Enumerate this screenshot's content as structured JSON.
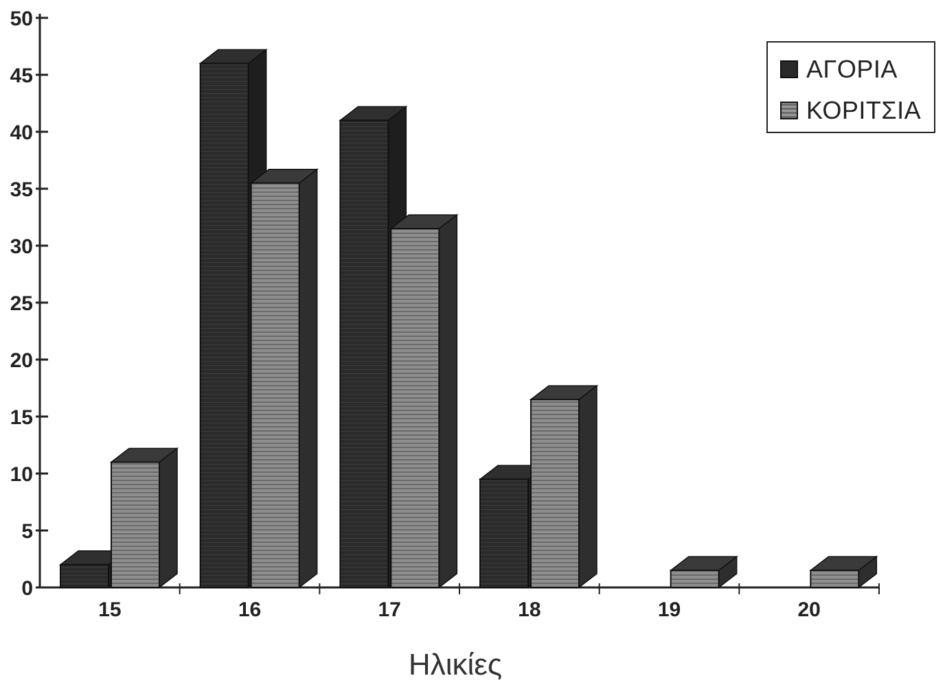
{
  "chart_data": {
    "type": "bar",
    "categories": [
      "15",
      "16",
      "17",
      "18",
      "19",
      "20"
    ],
    "series": [
      {
        "name": "ΑΓΟΡΙΑ",
        "values": [
          2,
          46,
          41,
          9.5,
          0,
          0
        ],
        "color": "#2a2a2a"
      },
      {
        "name": "ΚΟΡΙΤΣΙΑ",
        "values": [
          11,
          35.5,
          31.5,
          16.5,
          1.5,
          1.5
        ],
        "color": "#8a8a8a"
      }
    ],
    "title": "",
    "xlabel": "Ηλικίες",
    "ylabel": "",
    "ylim": [
      0,
      50
    ],
    "yticks": [
      "0",
      "5",
      "10",
      "15",
      "20",
      "25",
      "30",
      "35",
      "40",
      "45",
      "50"
    ],
    "legend_position": "top-right",
    "grid": false,
    "style": "3d-bars"
  }
}
